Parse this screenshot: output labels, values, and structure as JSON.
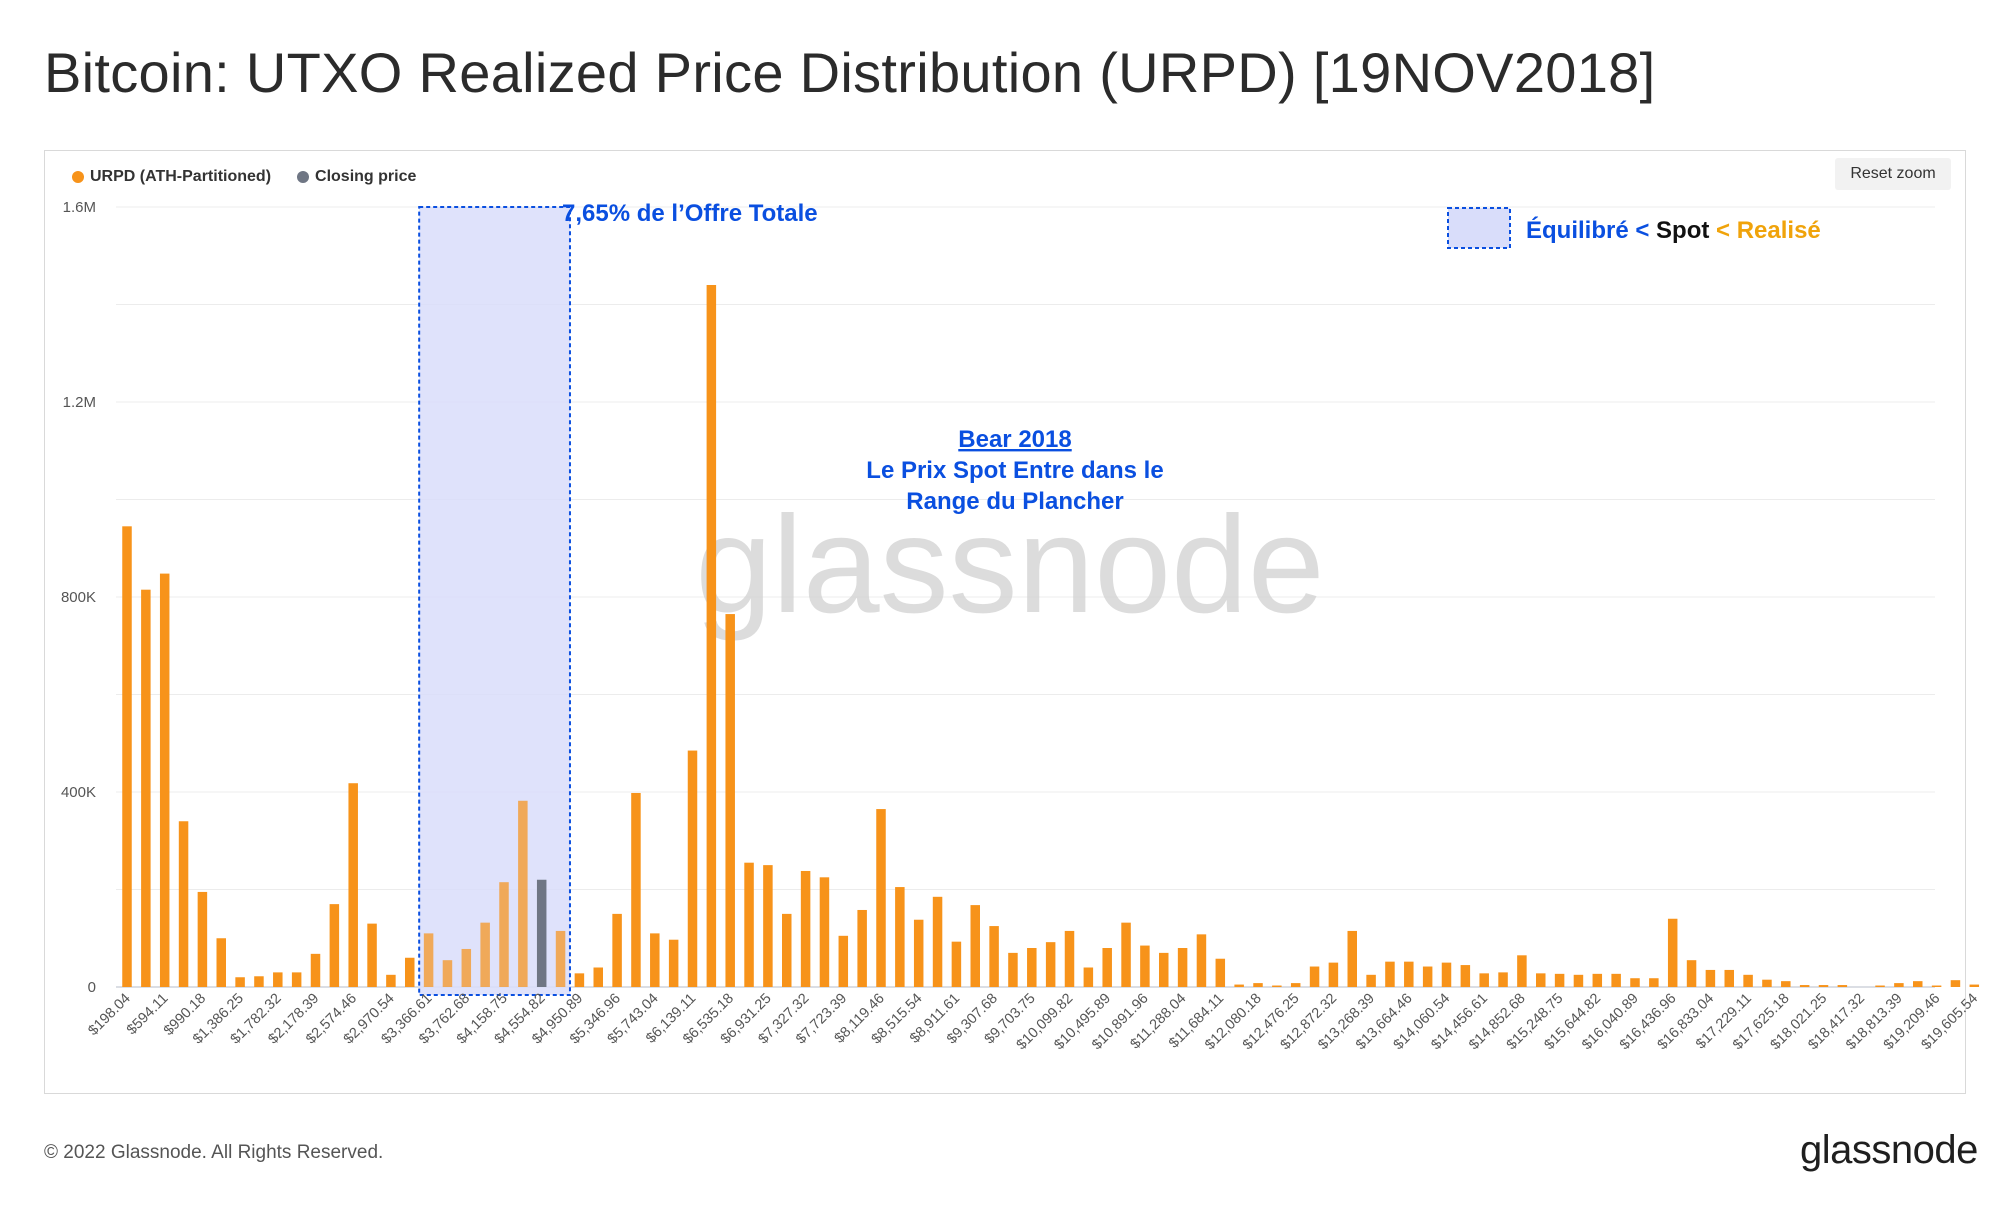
{
  "title": "Bitcoin: UTXO Realized Price Distribution (URPD) [19NOV2018]",
  "reset_zoom_label": "Reset zoom",
  "watermark": "glassnode",
  "footer": {
    "copyright": "© 2022 Glassnode. All Rights Reserved.",
    "logo": "glassnode"
  },
  "colors": {
    "urpd": "#f7931a",
    "closing": "#6f7684",
    "annotation_blue": "#0a4fe0",
    "highlight_fill": "#d9ddfa",
    "realise_orange": "#f0a30a"
  },
  "annotations": {
    "box_label": "7,65% de l’Offre Totale",
    "bear_title": "Bear 2018",
    "bear_line1": "Le Prix Spot Entre dans le",
    "bear_line2": "Range du Plancher",
    "key_part1": "Équilibré <",
    "key_part2": " Spot ",
    "key_part3": "< Realisé"
  },
  "chart_data": {
    "type": "bar",
    "title": "",
    "xlabel": "",
    "ylabel": "",
    "ylim": [
      0,
      1600000
    ],
    "y_ticks": [
      {
        "value": 0,
        "label": "0"
      },
      {
        "value": 400000,
        "label": "400K"
      },
      {
        "value": 800000,
        "label": "800K"
      },
      {
        "value": 1200000,
        "label": "1.2M"
      },
      {
        "value": 1600000,
        "label": "1.6M"
      }
    ],
    "grid": true,
    "legend_position": "top-left",
    "tick_labels": [
      "$198.04",
      "$594.11",
      "$990.18",
      "$1,386.25",
      "$1,782.32",
      "$2,178.39",
      "$2,574.46",
      "$2,970.54",
      "$3,366.61",
      "$3,762.68",
      "$4,158.75",
      "$4,554.82",
      "$4,950.89",
      "$5,346.96",
      "$5,743.04",
      "$6,139.11",
      "$6,535.18",
      "$6,931.25",
      "$7,327.32",
      "$7,723.39",
      "$8,119.46",
      "$8,515.54",
      "$8,911.61",
      "$9,307.68",
      "$9,703.75",
      "$10,099.82",
      "$10,495.89",
      "$10,891.96",
      "$11,288.04",
      "$11,684.11",
      "$12,080.18",
      "$12,476.25",
      "$12,872.32",
      "$13,268.39",
      "$13,664.46",
      "$14,060.54",
      "$14,456.61",
      "$14,852.68",
      "$15,248.75",
      "$15,644.82",
      "$16,040.89",
      "$16,436.96",
      "$16,833.04",
      "$17,229.11",
      "$17,625.18",
      "$18,021.25",
      "$18,417.32",
      "$18,813.39",
      "$19,209.46",
      "$19,605.54"
    ],
    "series": [
      {
        "name": "URPD (ATH-Partitioned)",
        "color": "#f7931a",
        "values": [
          945000,
          815000,
          848000,
          340000,
          195000,
          100000,
          20000,
          22000,
          30000,
          30000,
          68000,
          170000,
          418000,
          130000,
          25000,
          60000,
          110000,
          55000,
          78000,
          132000,
          215000,
          382000,
          0,
          115000,
          28000,
          40000,
          150000,
          398000,
          110000,
          97000,
          485000,
          1440000,
          765000,
          255000,
          250000,
          150000,
          238000,
          225000,
          105000,
          158000,
          365000,
          205000,
          138000,
          185000,
          93000,
          168000,
          125000,
          70000,
          80000,
          92000,
          115000,
          40000,
          80000,
          132000,
          85000,
          70000,
          80000,
          108000,
          58000,
          5000,
          8000,
          3000,
          8000,
          42000,
          50000,
          115000,
          25000,
          52000,
          52000,
          42000,
          50000,
          45000,
          28000,
          30000,
          65000,
          28000,
          27000,
          25000,
          27000,
          27000,
          18000,
          18000,
          140000,
          55000,
          35000,
          35000,
          25000,
          15000,
          12000,
          4000,
          4000,
          4000,
          0,
          3000,
          8000,
          12000,
          3000,
          14000,
          5000
        ]
      },
      {
        "name": "Closing price",
        "color": "#6f7684",
        "bar_index": 22,
        "values": [
          220000
        ]
      }
    ],
    "highlight_range": {
      "from_index": 15.5,
      "to_index": 23.5,
      "ymax": 1600000
    }
  }
}
